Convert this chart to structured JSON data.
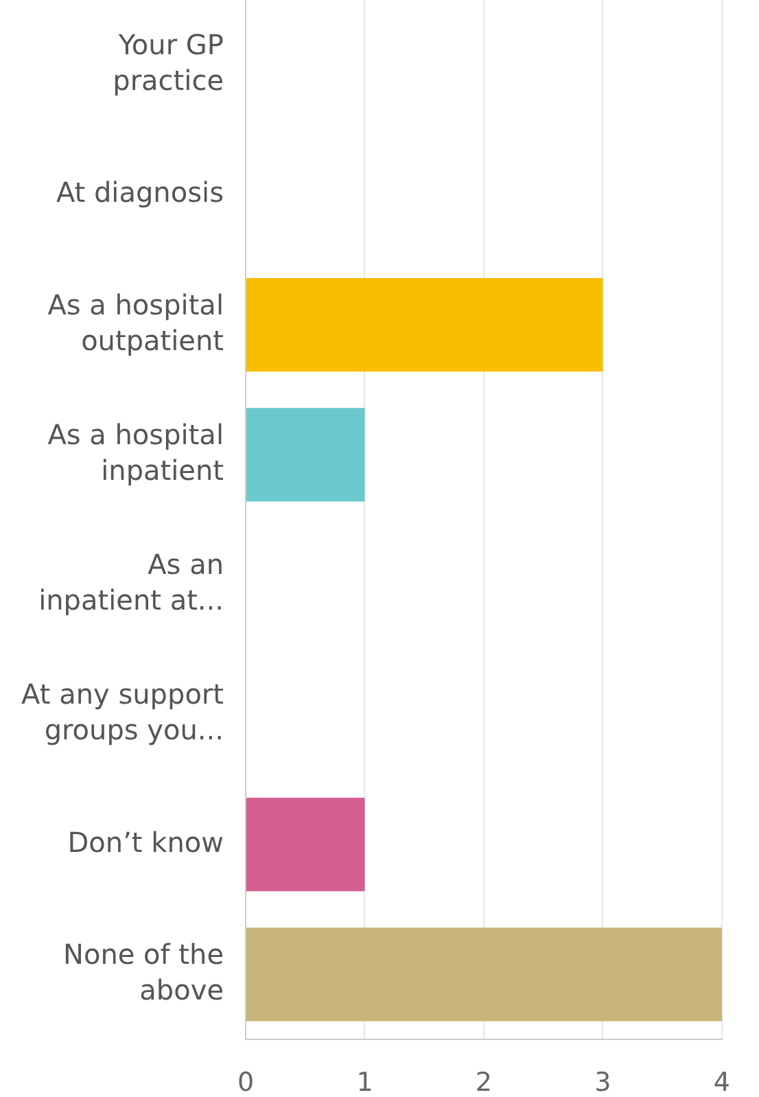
{
  "chart_data": {
    "type": "bar",
    "orientation": "horizontal",
    "categories": [
      "Your GP\npractice",
      "At diagnosis",
      "As a hospital\noutpatient",
      "As a hospital\ninpatient",
      "As an\ninpatient at...",
      "At any support\ngroups you...",
      "Don’t know",
      "None of the\nabove"
    ],
    "values": [
      0,
      0,
      3,
      1,
      0,
      0,
      1,
      4
    ],
    "colors": [
      "#00bf6f",
      "#507cb6",
      "#f9be00",
      "#6bc8cd",
      "#ff8b4f",
      "#7d5e90",
      "#d25f90",
      "#c7b579"
    ],
    "xlim": [
      0,
      4
    ],
    "xticks": [
      0,
      1,
      2,
      3,
      4
    ],
    "grid": "x",
    "legend": false
  }
}
